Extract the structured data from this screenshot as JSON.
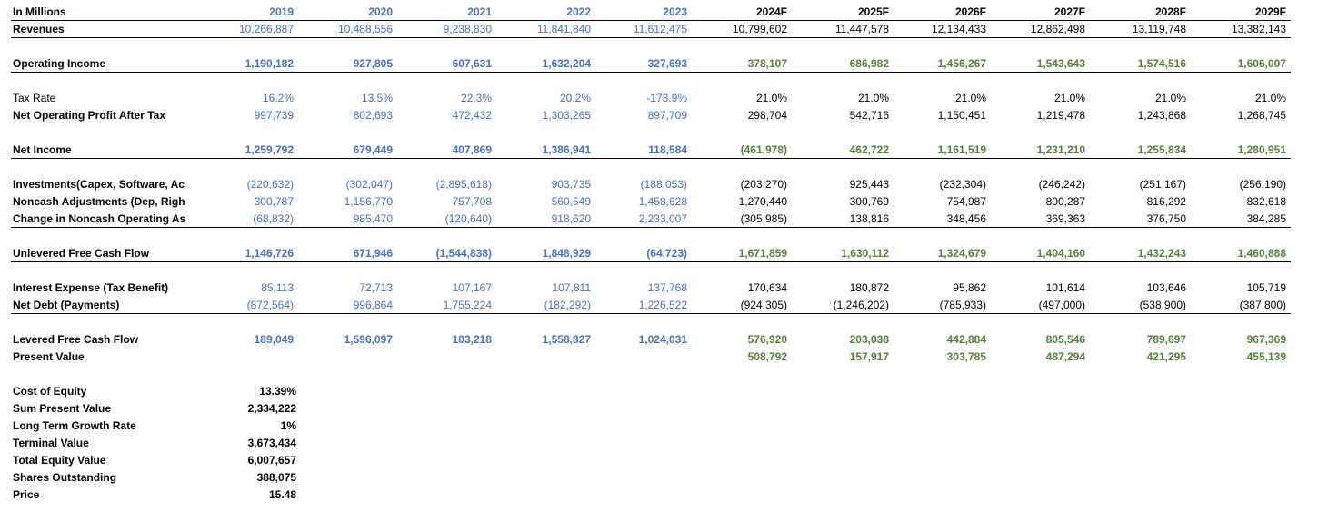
{
  "header": {
    "label": "In Millions",
    "years": [
      "2019",
      "2020",
      "2021",
      "2022",
      "2023",
      "2024F",
      "2025F",
      "2026F",
      "2027F",
      "2028F",
      "2029F"
    ]
  },
  "rows": [
    {
      "label": "Revenues",
      "bold": true,
      "values": [
        "10,266,887",
        "10,488,556",
        "9,238,830",
        "11,841,840",
        "11,612,475",
        "10,799,602",
        "11,447,578",
        "12,134,433",
        "12,862,498",
        "13,119,748",
        "13,382,143"
      ],
      "forecast_style": "black",
      "values_bold": false
    },
    {
      "label": "Operating Income",
      "bold": true,
      "values": [
        "1,190,182",
        "927,805",
        "607,631",
        "1,632,204",
        "327,693",
        "378,107",
        "686,982",
        "1,456,267",
        "1,543,643",
        "1,574,516",
        "1,606,007"
      ],
      "forecast_style": "green",
      "values_bold": true
    },
    {
      "label": "Tax Rate",
      "bold": false,
      "values": [
        "16.2%",
        "13.5%",
        "22.3%",
        "20.2%",
        "-173.9%",
        "21.0%",
        "21.0%",
        "21.0%",
        "21.0%",
        "21.0%",
        "21.0%"
      ],
      "forecast_style": "black",
      "values_bold": false
    },
    {
      "label": "Net Operating Profit After Tax",
      "bold": true,
      "values": [
        "997,739",
        "802,693",
        "472,432",
        "1,303,265",
        "897,709",
        "298,704",
        "542,716",
        "1,150,451",
        "1,219,478",
        "1,243,868",
        "1,268,745"
      ],
      "forecast_style": "black",
      "values_bold": false
    },
    {
      "label": "Net Income",
      "bold": true,
      "values": [
        "1,259,792",
        "679,449",
        "407,869",
        "1,386,941",
        "118,584",
        "(461,978)",
        "462,722",
        "1,161,519",
        "1,231,210",
        "1,255,834",
        "1,280,951"
      ],
      "forecast_style": "green",
      "values_bold": true
    },
    {
      "label": "Investments(Capex, Software, Acquisitions)",
      "bold": true,
      "values": [
        "(220,632)",
        "(302,047)",
        "(2,895,618)",
        "903,735",
        "(188,053)",
        "(203,270)",
        "925,443",
        "(232,304)",
        "(246,242)",
        "(251,167)",
        "(256,190)"
      ],
      "forecast_style": "black",
      "values_bold": false
    },
    {
      "label": "Noncash Adjustments (Dep, Right of Use)",
      "bold": true,
      "values": [
        "300,787",
        "1,156,770",
        "757,708",
        "560,549",
        "1,458,628",
        "1,270,440",
        "300,769",
        "754,987",
        "800,287",
        "816,292",
        "832,618"
      ],
      "forecast_style": "black",
      "values_bold": false
    },
    {
      "label": "Change in Noncash Operating Assets",
      "bold": true,
      "values": [
        "(68,832)",
        "985,470",
        "(120,640)",
        "918,620",
        "2,233,007",
        "(305,985)",
        "138,816",
        "348,456",
        "369,363",
        "376,750",
        "384,285"
      ],
      "forecast_style": "black",
      "values_bold": false
    },
    {
      "label": "Unlevered Free Cash Flow",
      "bold": true,
      "values": [
        "1,146,726",
        "671,946",
        "(1,544,838)",
        "1,848,929",
        "(64,723)",
        "1,671,859",
        "1,630,112",
        "1,324,679",
        "1,404,160",
        "1,432,243",
        "1,460,888"
      ],
      "forecast_style": "green",
      "values_bold": true
    },
    {
      "label": "Interest Expense (Tax Benefit)",
      "bold": true,
      "values": [
        "85,113",
        "72,713",
        "107,167",
        "107,811",
        "137,768",
        "170,634",
        "180,872",
        "95,862",
        "101,614",
        "103,646",
        "105,719"
      ],
      "forecast_style": "black",
      "values_bold": false
    },
    {
      "label": "Net Debt (Payments)",
      "bold": true,
      "values": [
        "(872,564)",
        "996,864",
        "1,755,224",
        "(182,292)",
        "1,226,522",
        "(924,305)",
        "(1,246,202)",
        "(785,933)",
        "(497,000)",
        "(538,900)",
        "(387,800)"
      ],
      "forecast_style": "black",
      "values_bold": false
    },
    {
      "label": "Levered Free Cash Flow",
      "bold": true,
      "values": [
        "189,049",
        "1,596,097",
        "103,218",
        "1,558,827",
        "1,024,031",
        "576,920",
        "203,038",
        "442,884",
        "805,546",
        "789,697",
        "967,369"
      ],
      "forecast_style": "green",
      "values_bold": true
    },
    {
      "label": "Present Value",
      "bold": true,
      "values": [
        "",
        "",
        "",
        "",
        "",
        "508,792",
        "157,917",
        "303,785",
        "487,294",
        "421,295",
        "455,139"
      ],
      "forecast_style": "green",
      "values_bold": true
    }
  ],
  "summary": [
    {
      "label": "Cost of Equity",
      "value": "13.39%"
    },
    {
      "label": "Sum Present Value",
      "value": "2,334,222"
    },
    {
      "label": "Long Term Growth Rate",
      "value": "1%"
    },
    {
      "label": "Terminal Value",
      "value": "3,673,434"
    },
    {
      "label": "Total Equity Value",
      "value": "6,007,657"
    },
    {
      "label": "Shares Outstanding",
      "value": "388,075"
    },
    {
      "label": "Price",
      "value": "15.48"
    }
  ],
  "colors": {
    "historical": "#4472C4",
    "forecast_green": "#538135",
    "text": "#000000"
  }
}
